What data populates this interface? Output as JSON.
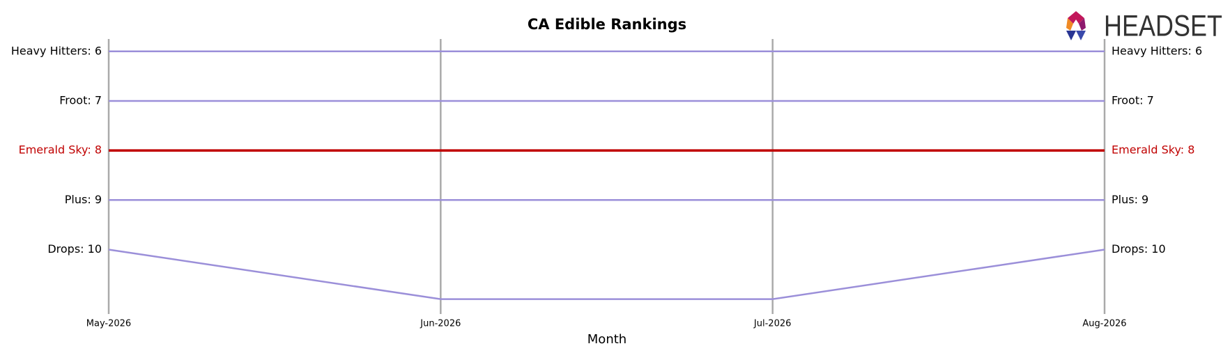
{
  "chart_data": {
    "type": "bump",
    "title": "CA Edible Rankings",
    "x_label": "Month",
    "categories": [
      "May-2026",
      "Jun-2026",
      "Jul-2026",
      "Aug-2026"
    ],
    "ylim": [
      11.3,
      5.75
    ],
    "series": [
      {
        "start_label": "Heavy Hitters: 6",
        "end_label": "Heavy Hitters: 6",
        "color": "#9b8fd9",
        "label_color": "#000000",
        "values": [
          6,
          6,
          6,
          6
        ]
      },
      {
        "start_label": "Froot: 7",
        "end_label": "Froot: 7",
        "color": "#9b8fd9",
        "label_color": "#000000",
        "values": [
          7,
          7,
          7,
          7
        ]
      },
      {
        "start_label": "Emerald Sky: 8",
        "end_label": "Emerald Sky: 8",
        "color": "#c00000",
        "label_color": "#c00000",
        "values": [
          8,
          8,
          8,
          8
        ]
      },
      {
        "start_label": "Plus: 9",
        "end_label": "Plus: 9",
        "color": "#9b8fd9",
        "label_color": "#000000",
        "values": [
          9,
          9,
          9,
          9
        ]
      },
      {
        "start_label": "Drops: 10",
        "end_label": "Drops: 10",
        "color": "#9b8fd9",
        "label_color": "#000000",
        "values": [
          10,
          11,
          11,
          10
        ]
      }
    ],
    "logo": "HEADSET"
  }
}
